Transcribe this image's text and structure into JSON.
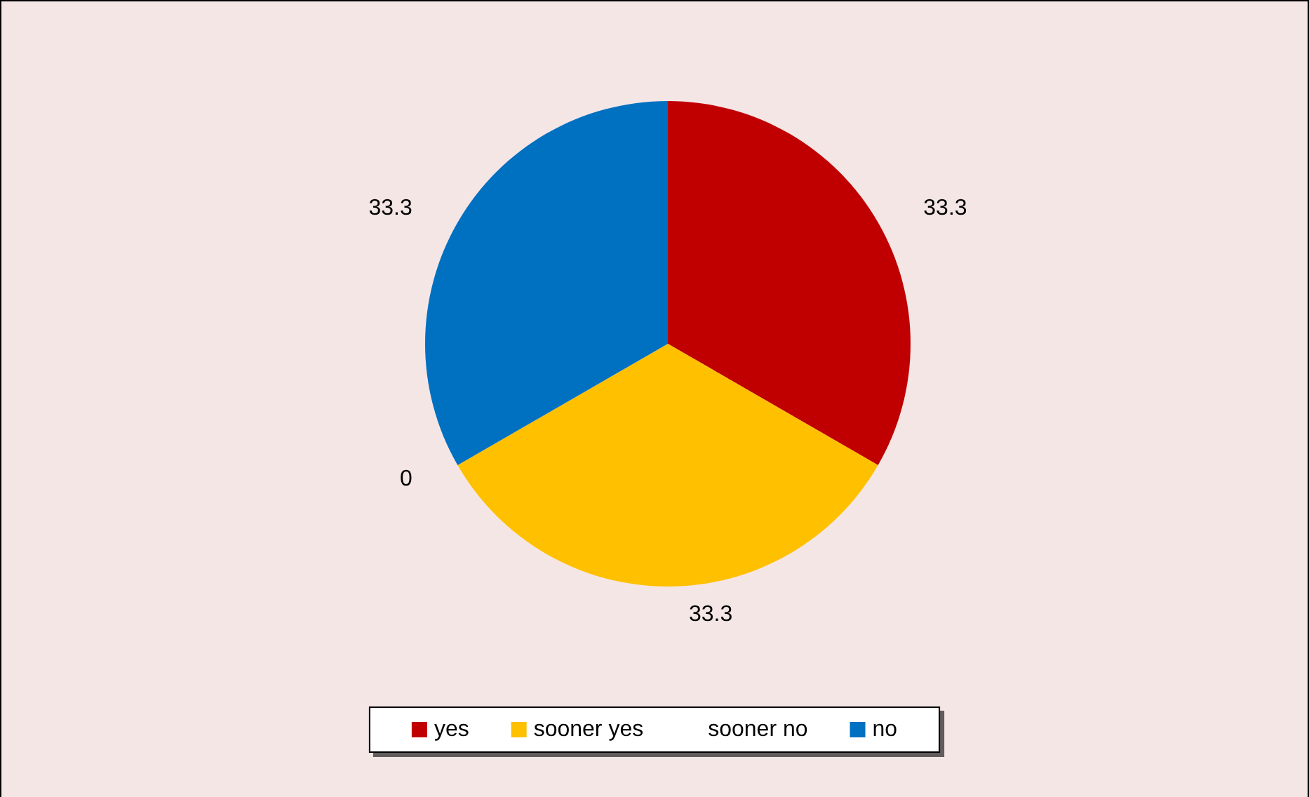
{
  "chart_data": {
    "type": "pie",
    "categories": [
      "yes",
      "sooner yes",
      "sooner no",
      "no"
    ],
    "values": [
      33.3,
      33.3,
      0,
      33.3
    ],
    "colors": [
      "#c00000",
      "#ffc000",
      "#ffffff",
      "#0070c0"
    ],
    "value_labels": [
      "33.3",
      "33.3",
      "0",
      "33.3"
    ],
    "legend": "bottom"
  }
}
